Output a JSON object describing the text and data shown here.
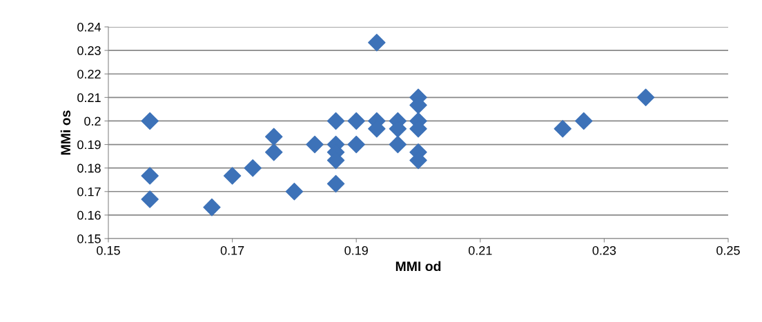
{
  "chart_data": {
    "type": "scatter",
    "xlabel": "MMI od",
    "ylabel": "MMi os",
    "x": [
      0.1567,
      0.1567,
      0.1567,
      0.1667,
      0.17,
      0.1733,
      0.1767,
      0.1767,
      0.18,
      0.1833,
      0.1867,
      0.1867,
      0.1867,
      0.1867,
      0.1867,
      0.19,
      0.19,
      0.1933,
      0.1933,
      0.1933,
      0.1967,
      0.1967,
      0.1967,
      0.2,
      0.2,
      0.2,
      0.2,
      0.2,
      0.2,
      0.2233,
      0.2267,
      0.2367
    ],
    "values": [
      0.2,
      0.1767,
      0.1667,
      0.1633,
      0.1767,
      0.18,
      0.1933,
      0.1867,
      0.17,
      0.19,
      0.2,
      0.19,
      0.1867,
      0.1833,
      0.1733,
      0.2,
      0.19,
      0.2333,
      0.2,
      0.1967,
      0.2,
      0.1967,
      0.19,
      0.21,
      0.2067,
      0.2,
      0.1967,
      0.1867,
      0.1833,
      0.1967,
      0.2,
      0.21
    ],
    "color": "#3d72b8",
    "marker": "diamond",
    "xlim": [
      0.15,
      0.25
    ],
    "xticks": [
      0.15,
      0.17,
      0.19,
      0.21,
      0.23,
      0.25
    ],
    "ylim": [
      0.15,
      0.24
    ],
    "yticks": [
      0.15,
      0.16,
      0.17,
      0.18,
      0.19,
      0.2,
      0.21,
      0.22,
      0.23,
      0.24
    ],
    "grid": "y"
  }
}
